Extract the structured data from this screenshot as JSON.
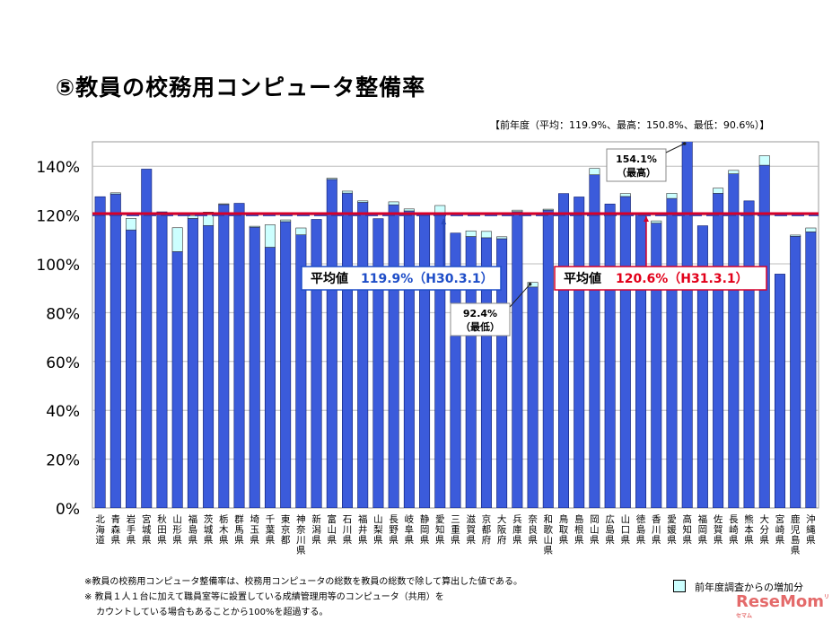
{
  "page": {
    "title": "⑤教員の校務用コンピュータ整備率",
    "prev_year": "【前年度（平均：119.9%、最高：150.8%、最低：90.6%）】",
    "notes": [
      "※教員の校務用コンピュータ整備率は、校務用コンピュータの総数を教員の総数で除して算出した値である。",
      "※ 教員１人１台に加えて職員室等に設置している成績管理用等のコンピュータ（共用）を",
      "　 カウントしている場合もあることから100%を超過する。"
    ],
    "legend_label": "前年度調査からの増加分",
    "logo": "ReseMom",
    "logo_sub": "リセマム"
  },
  "chart_data": {
    "type": "bar",
    "yticks": [
      "0%",
      "20%",
      "40%",
      "60%",
      "80%",
      "100%",
      "120%",
      "140%"
    ],
    "ylim": [
      0,
      150
    ],
    "categories": [
      "北海道",
      "青森県",
      "岩手県",
      "宮城県",
      "秋田県",
      "山形県",
      "福島県",
      "茨城県",
      "栃木県",
      "群馬県",
      "埼玉県",
      "千葉県",
      "東京都",
      "神奈川県",
      "新潟県",
      "富山県",
      "石川県",
      "福井県",
      "山梨県",
      "長野県",
      "岐阜県",
      "静岡県",
      "愛知県",
      "三重県",
      "滋賀県",
      "京都府",
      "大阪府",
      "兵庫県",
      "奈良県",
      "和歌山県",
      "鳥取県",
      "島根県",
      "岡山県",
      "広島県",
      "山口県",
      "徳島県",
      "香川県",
      "愛媛県",
      "高知県",
      "福岡県",
      "佐賀県",
      "長崎県",
      "熊本県",
      "大分県",
      "宮崎県",
      "鹿児島県",
      "沖縄県"
    ],
    "series": [
      {
        "values": [
          127.5,
          128.6,
          113.9,
          138.8,
          121.3,
          105.0,
          118.6,
          115.7,
          124.3,
          124.8,
          115.0,
          106.8,
          117.3,
          111.9,
          118.2,
          134.6,
          129.0,
          125.2,
          118.5,
          124.2,
          121.7,
          120.7,
          120.3,
          112.6,
          111.2,
          110.7,
          110.3,
          121.4,
          90.5,
          122.0,
          128.8,
          127.4,
          136.5,
          124.5,
          127.6,
          120.6,
          116.7,
          126.8,
          154.1,
          115.6,
          128.9,
          136.9,
          125.8,
          140.4,
          95.8,
          111.3,
          113.1
        ]
      },
      {
        "values": [
          0,
          0.5,
          4.7,
          0,
          0,
          9.8,
          1.2,
          5.5,
          0.3,
          0,
          0.4,
          9.2,
          0.7,
          2.8,
          0,
          0.5,
          0.8,
          0.6,
          0,
          1.2,
          0.8,
          0,
          3.6,
          0,
          2.3,
          2.6,
          0.8,
          0.6,
          1.9,
          0.4,
          0,
          0,
          2.6,
          0,
          1.2,
          0,
          0.9,
          2.1,
          0,
          0,
          2.1,
          1.4,
          0,
          3.9,
          0,
          0.5,
          1.6
        ]
      }
    ],
    "average": {
      "value": 120.6,
      "label": "平均値",
      "value_label": "120.6%（H31.3.1）"
    },
    "prev_average": {
      "value": 119.9,
      "label": "平均値",
      "value_label": "119.9%（H30.3.1）"
    },
    "annotations": [
      {
        "category": "高知県",
        "text": [
          "154.1%",
          "（最高）"
        ]
      },
      {
        "category": "奈良県",
        "text": [
          "92.4%",
          "（最低）"
        ]
      }
    ],
    "colors": {
      "bar": "#3b5bdb",
      "increase": "#ccffff",
      "avg_line": "#d6002a",
      "prev_line": "#2646b8",
      "avg_text": "#e2001a",
      "prev_text": "#1f4ec8"
    }
  }
}
